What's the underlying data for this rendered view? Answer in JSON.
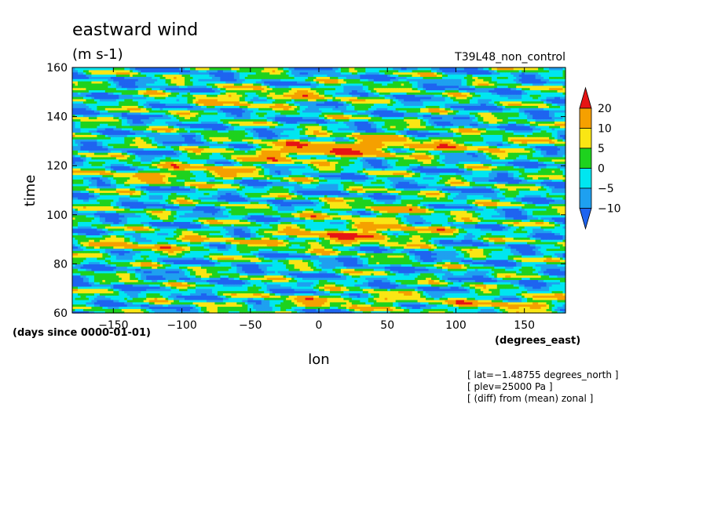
{
  "chart_data": {
    "type": "heatmap",
    "title": "eastward wind",
    "units": "(m s-1)",
    "run_label": "T39L48_non_control",
    "xlabel": "lon",
    "x_units": "(degrees_east)",
    "ylabel": "time",
    "y_units": "(days since 0000-01-01)",
    "xlim": [
      -180,
      180
    ],
    "ylim": [
      60,
      160
    ],
    "x_ticks": [
      -150,
      -100,
      -50,
      0,
      50,
      100,
      150
    ],
    "y_ticks": [
      60,
      80,
      100,
      120,
      140,
      160
    ],
    "x_tick_labels": [
      "−150",
      "−100",
      "−50",
      "0",
      "50",
      "100",
      "150"
    ],
    "y_tick_labels": [
      "60",
      "80",
      "100",
      "120",
      "140",
      "160"
    ],
    "colorbar": {
      "levels": [
        -10,
        -5,
        0,
        5,
        10,
        20
      ],
      "labels": [
        "−10",
        "−5",
        "0",
        "5",
        "10",
        "20"
      ],
      "colors": [
        "#1e64f0",
        "#1ea0f0",
        "#00e6f0",
        "#1ed21e",
        "#fae614",
        "#f5a000",
        "#e61414"
      ]
    },
    "notes": [
      "[ lat=−1.48755 degrees_north ]",
      "[ plev=25000 Pa ]",
      "[ (diff) from (mean) zonal ]"
    ]
  }
}
